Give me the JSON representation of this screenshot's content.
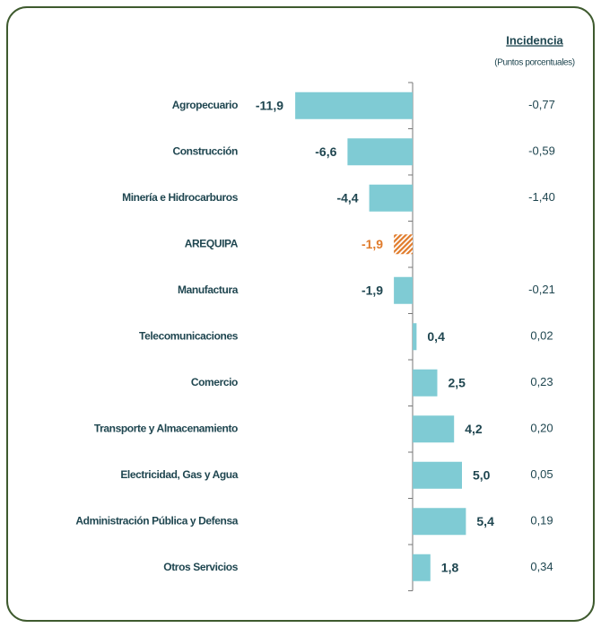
{
  "chart_data": {
    "type": "barh",
    "header": "Incidencia",
    "subheader": "(Puntos porcentuales)",
    "categories": [
      "Agropecuario",
      "Construcción",
      "Minería e Hidrocarburos",
      "AREQUIPA",
      "Manufactura",
      "Telecomunicaciones",
      "Comercio",
      "Transporte y Almacenamiento",
      "Electricidad, Gas y Agua",
      "Administración Pública y Defensa",
      "Otros Servicios"
    ],
    "values": [
      -11.9,
      -6.6,
      -4.4,
      -1.9,
      -1.9,
      0.4,
      2.5,
      4.2,
      5.0,
      5.4,
      1.8
    ],
    "value_labels": [
      "-11,9",
      "-6,6",
      "-4,4",
      "-1,9",
      "-1,9",
      "0,4",
      "2,5",
      "4,2",
      "5,0",
      "5,4",
      "1,8"
    ],
    "colors": [
      "#7fcbd4",
      "#7fcbd4",
      "#7fcbd4",
      "#e07b2b",
      "#7fcbd4",
      "#7fcbd4",
      "#7fcbd4",
      "#7fcbd4",
      "#7fcbd4",
      "#7fcbd4",
      "#7fcbd4"
    ],
    "incidence": [
      -0.77,
      -0.59,
      -1.4,
      null,
      -0.21,
      0.02,
      0.23,
      0.2,
      0.05,
      0.19,
      0.34
    ],
    "incidence_labels": [
      "-0,77",
      "-0,59",
      "-1,40",
      null,
      "-0,21",
      "0,02",
      "0,23",
      "0,20",
      "0,05",
      "0,19",
      "0,34"
    ],
    "xlim": [
      -12,
      6
    ]
  }
}
